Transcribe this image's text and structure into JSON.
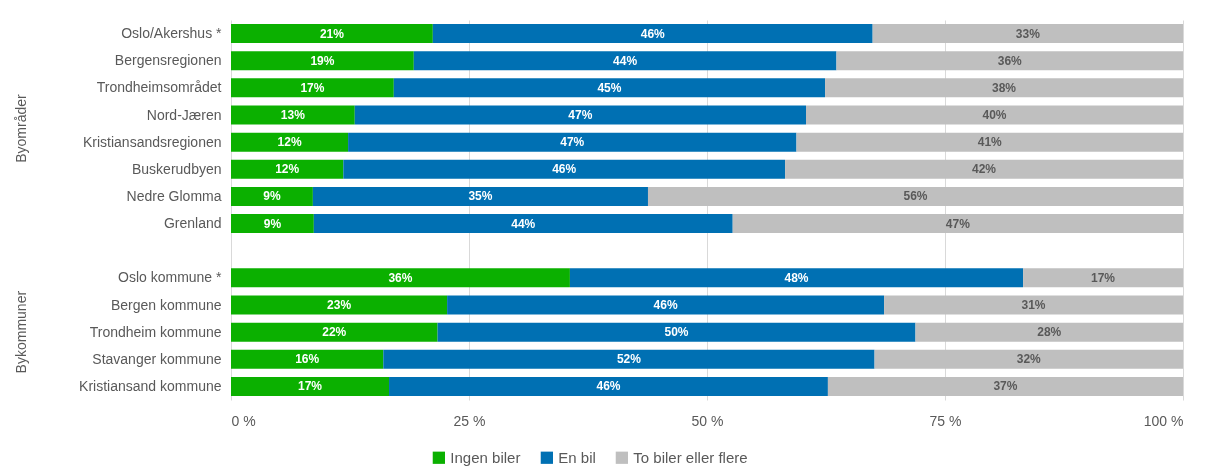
{
  "chart_data": {
    "type": "bar",
    "orientation": "horizontal",
    "stacked": true,
    "categories": [
      "Oslo/Akershus *",
      "Bergensregionen",
      "Trondheimsområdet",
      "Nord-Jæren",
      "Kristiansandsregionen",
      "Buskerudbyen",
      "Nedre Glomma",
      "Grenland",
      null,
      "Oslo kommune *",
      "Bergen kommune",
      "Trondheim kommune",
      "Stavanger kommune",
      "Kristiansand kommune"
    ],
    "series": [
      {
        "name": "Ingen biler",
        "color": "#0bb000",
        "values": [
          21.2,
          19.2,
          17.1,
          13.0,
          12.3,
          11.8,
          8.6,
          8.7,
          null,
          35.6,
          22.7,
          21.7,
          16.0,
          16.6
        ],
        "value_labels": [
          "21%",
          "19%",
          "17%",
          "13%",
          "12%",
          "12%",
          "9%",
          "9%",
          null,
          "36%",
          "23%",
          "22%",
          "16%",
          "17%"
        ]
      },
      {
        "name": "En bil",
        "color": "#0070b3",
        "values": [
          46.2,
          44.4,
          45.3,
          47.4,
          47.1,
          46.4,
          35.2,
          44.0,
          null,
          47.6,
          45.9,
          50.2,
          51.6,
          46.1
        ],
        "value_labels": [
          "46%",
          "44%",
          "45%",
          "47%",
          "47%",
          "46%",
          "35%",
          "44%",
          null,
          "48%",
          "46%",
          "50%",
          "52%",
          "46%"
        ]
      },
      {
        "name": "To biler eller flere",
        "color": "#bfbfbf",
        "values": [
          32.6,
          36.4,
          37.6,
          39.6,
          40.6,
          41.8,
          56.2,
          47.3,
          null,
          16.8,
          31.4,
          28.1,
          32.4,
          37.3
        ],
        "value_labels": [
          "33%",
          "36%",
          "38%",
          "40%",
          "41%",
          "42%",
          "56%",
          "47%",
          null,
          "17%",
          "31%",
          "28%",
          "32%",
          "37%"
        ]
      }
    ],
    "xlim": [
      0,
      100
    ],
    "xticks": [
      {
        "value": 0,
        "label": "0 %"
      },
      {
        "value": 25,
        "label": "25 %"
      },
      {
        "value": 50,
        "label": "50 %"
      },
      {
        "value": 75,
        "label": "75 %"
      },
      {
        "value": 100,
        "label": "100 %"
      }
    ],
    "grid": "x",
    "legend": "bottom",
    "annotations": [
      "Byområder",
      "Bykommuner"
    ]
  }
}
